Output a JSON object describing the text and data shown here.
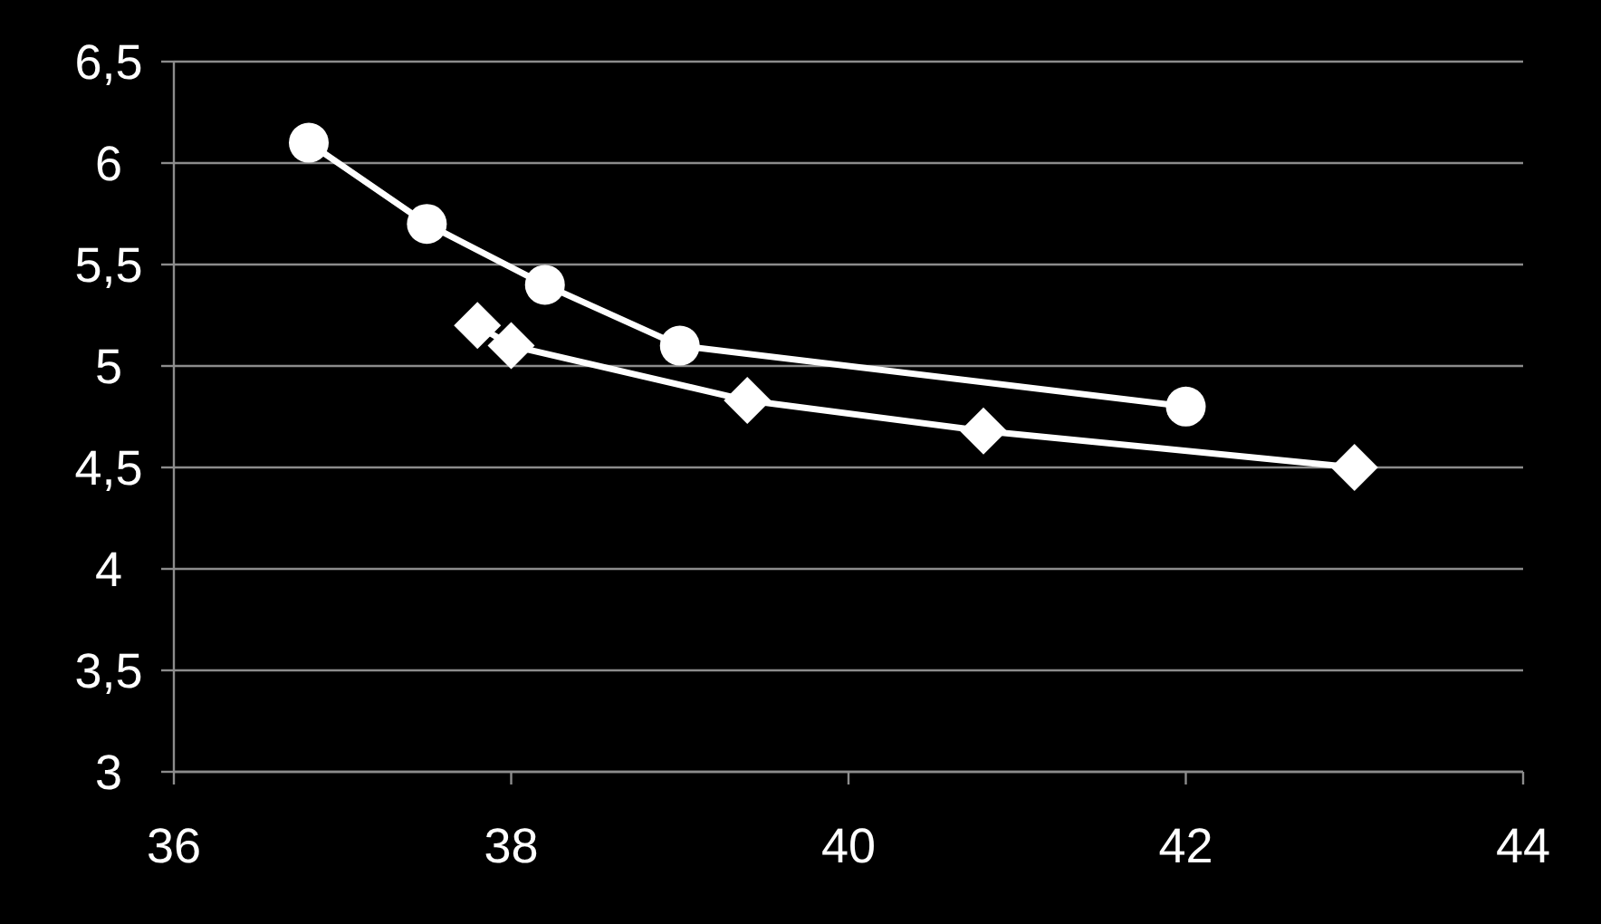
{
  "chart_data": {
    "type": "line",
    "xlim": [
      36,
      44
    ],
    "xticks": [
      36,
      38,
      40,
      42,
      44
    ],
    "ylim": [
      3,
      6.5
    ],
    "yticks": [
      3,
      {
        "value": 3.5,
        "label": "3,5"
      },
      4,
      {
        "value": 4.5,
        "label": "4,5"
      },
      5,
      {
        "value": 5.5,
        "label": "5,5"
      },
      6,
      {
        "value": 6.5,
        "label": "6,5"
      }
    ],
    "grid": "y",
    "series": [
      {
        "color": "#ffffff",
        "marker": "circle",
        "x": [
          36.8,
          37.5,
          38.2,
          39.0,
          42.0
        ],
        "values": [
          6.1,
          5.7,
          5.4,
          5.1,
          4.8
        ]
      },
      {
        "color": "#ffffff",
        "marker": "diamond",
        "x": [
          37.8,
          38.0,
          39.4,
          40.8,
          43.0
        ],
        "values": [
          5.2,
          5.1,
          4.83,
          4.68,
          4.5
        ]
      }
    ]
  }
}
